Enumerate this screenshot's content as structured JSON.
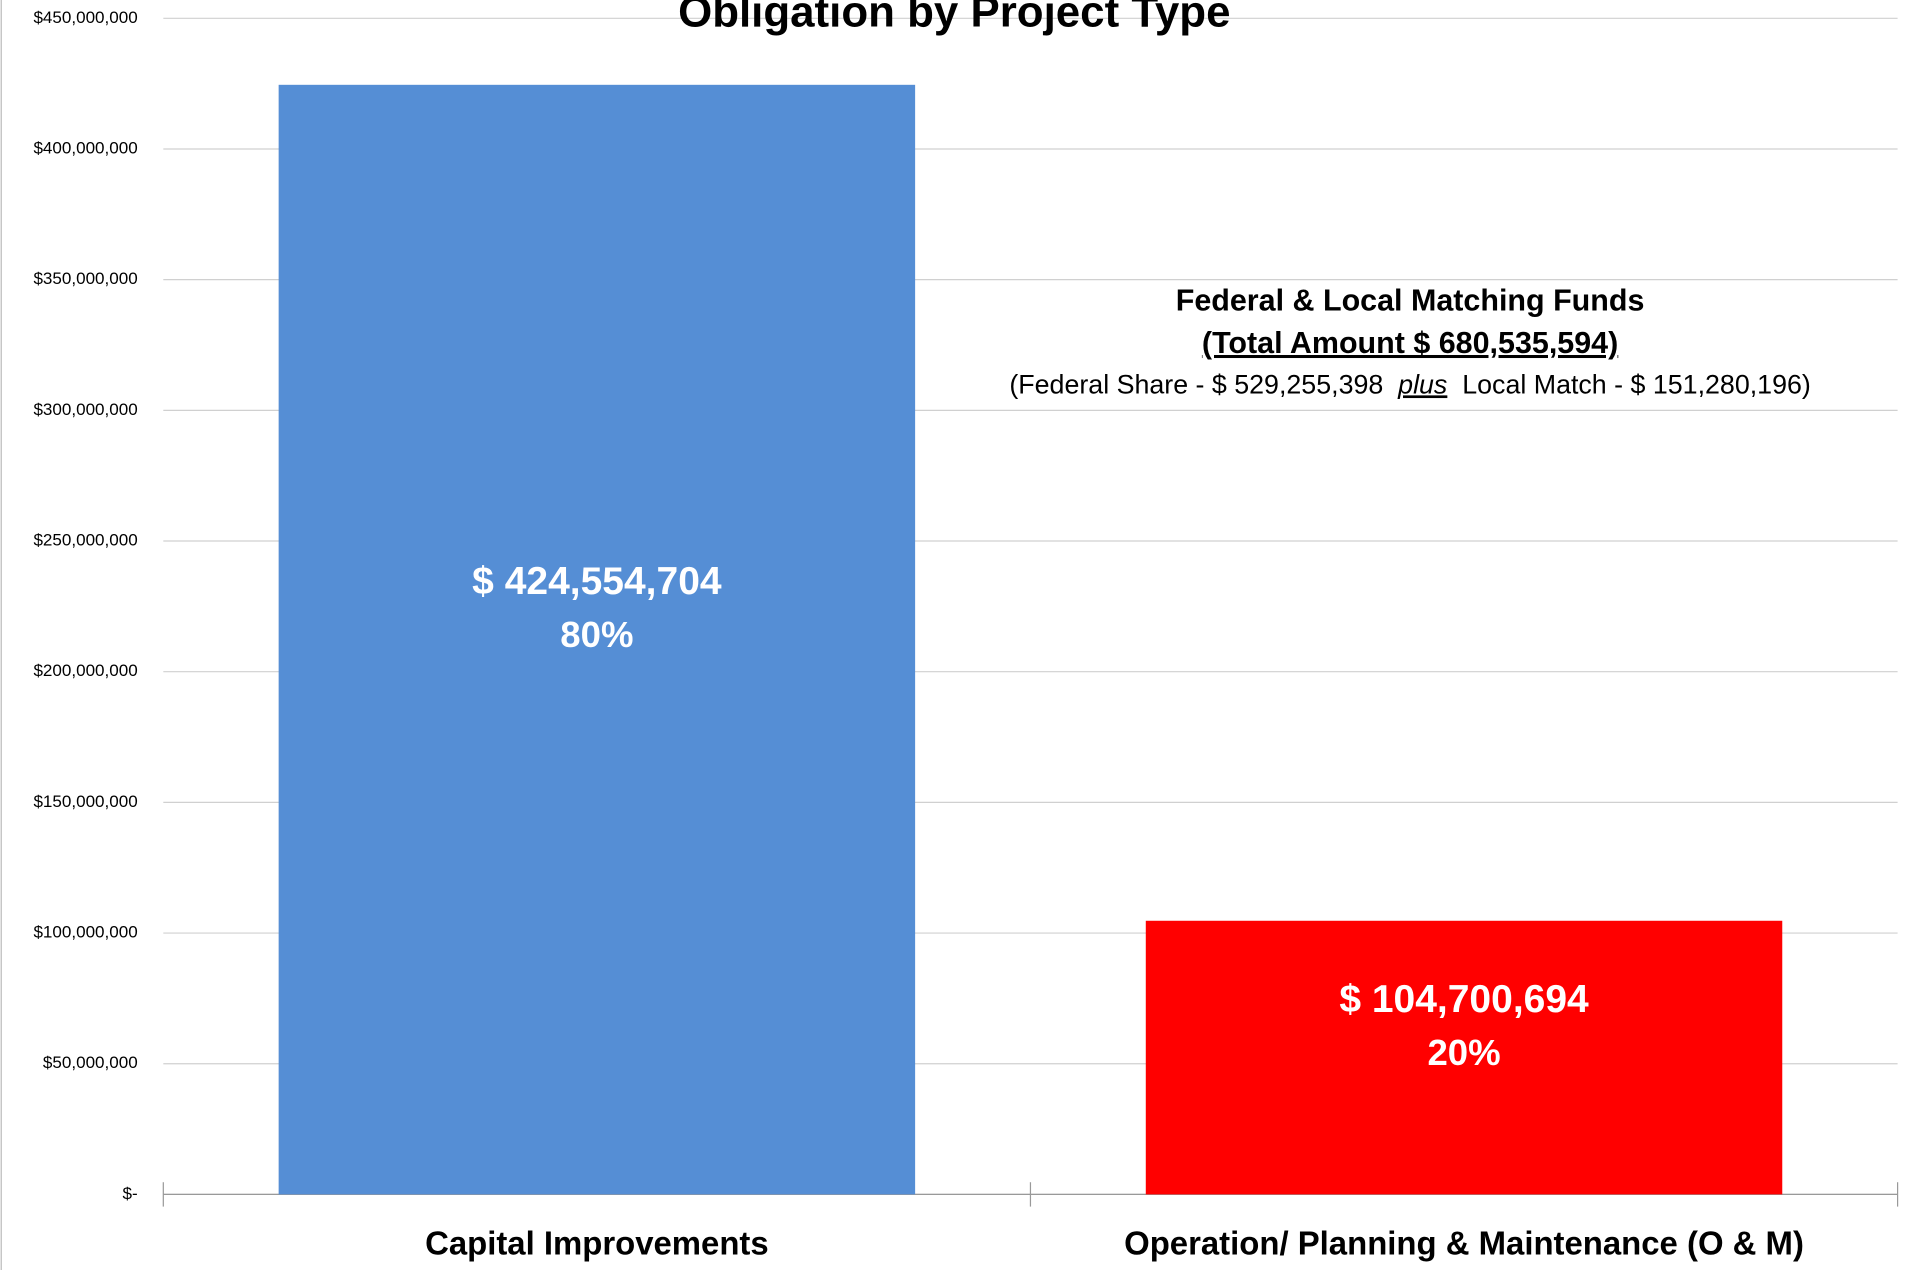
{
  "chart_data": {
    "type": "bar",
    "title": "Obligation by Project Type",
    "categories": [
      "Capital Improvements",
      "Operation/ Planning & Maintenance (O & M)"
    ],
    "values": [
      424554704,
      104700694
    ],
    "value_labels": [
      "$ 424,554,704",
      "$ 104,700,694"
    ],
    "percents": [
      80,
      20
    ],
    "percent_labels": [
      "80%",
      "20%"
    ],
    "colors": [
      "#558ed5",
      "#ff0000"
    ],
    "ylim": [
      0,
      450000000
    ],
    "yticks": [
      {
        "value": 0,
        "label": "$-"
      },
      {
        "value": 50000000,
        "label": "$50,000,000"
      },
      {
        "value": 100000000,
        "label": "$100,000,000"
      },
      {
        "value": 150000000,
        "label": "$150,000,000"
      },
      {
        "value": 200000000,
        "label": "$200,000,000"
      },
      {
        "value": 250000000,
        "label": "$250,000,000"
      },
      {
        "value": 300000000,
        "label": "$300,000,000"
      },
      {
        "value": 350000000,
        "label": "$350,000,000"
      },
      {
        "value": 400000000,
        "label": "$400,000,000"
      },
      {
        "value": 450000000,
        "label": "$450,000,000"
      }
    ],
    "grid": true,
    "annotation": {
      "heading": "Federal & Local Matching Funds",
      "total": "(Total Amount  $ 680,535,594)",
      "detail_start": "(Federal Share - $ 529,255,398",
      "detail_plus": "plus",
      "detail_end": "Local Match - $ 151,280,196)"
    }
  }
}
